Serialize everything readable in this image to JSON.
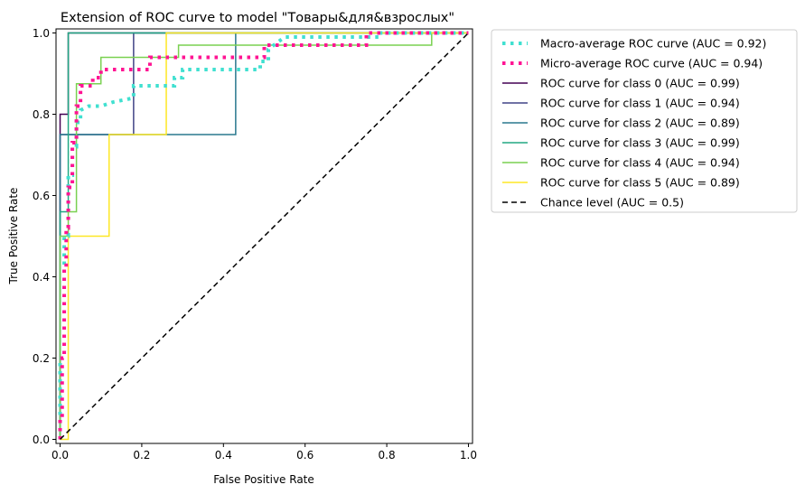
{
  "chart_data": {
    "type": "line",
    "title": "Extension of ROC curve to model \"Товары&для&взрослых\"",
    "xlabel": "False Positive Rate",
    "ylabel": "True Positive Rate",
    "xlim": [
      -0.01,
      1.01
    ],
    "ylim": [
      -0.01,
      1.01
    ],
    "xticks": [
      0.0,
      0.2,
      0.4,
      0.6,
      0.8,
      1.0
    ],
    "xtick_labels": [
      "0.0",
      "0.2",
      "0.4",
      "0.6",
      "0.8",
      "1.0"
    ],
    "yticks": [
      0.0,
      0.2,
      0.4,
      0.6,
      0.8,
      1.0
    ],
    "ytick_labels": [
      "0.0",
      "0.2",
      "0.4",
      "0.6",
      "0.8",
      "1.0"
    ],
    "grid": false,
    "legend_position": "outside upper right",
    "series": [
      {
        "name": "Macro-average ROC curve (AUC = 0.92)",
        "color": "#40e0d0",
        "style": "dotted",
        "x": [
          0.0,
          0.0,
          0.01,
          0.01,
          0.02,
          0.02,
          0.03,
          0.03,
          0.04,
          0.04,
          0.05,
          0.05,
          0.07,
          0.1,
          0.13,
          0.18,
          0.18,
          0.22,
          0.28,
          0.28,
          0.3,
          0.3,
          0.4,
          0.46,
          0.49,
          0.49,
          0.51,
          0.51,
          0.55,
          0.6,
          0.7,
          0.78,
          0.78,
          1.0
        ],
        "y": [
          0.0,
          0.2,
          0.2,
          0.5,
          0.5,
          0.65,
          0.65,
          0.72,
          0.72,
          0.78,
          0.78,
          0.81,
          0.82,
          0.82,
          0.83,
          0.84,
          0.87,
          0.87,
          0.87,
          0.89,
          0.89,
          0.91,
          0.91,
          0.91,
          0.91,
          0.93,
          0.93,
          0.96,
          0.99,
          0.99,
          0.99,
          0.99,
          1.0,
          1.0
        ]
      },
      {
        "name": "Micro-average ROC curve (AUC = 0.94)",
        "color": "#ff1493",
        "style": "dotted",
        "x": [
          0.0,
          0.0,
          0.005,
          0.005,
          0.01,
          0.01,
          0.015,
          0.015,
          0.02,
          0.02,
          0.03,
          0.03,
          0.04,
          0.04,
          0.05,
          0.05,
          0.08,
          0.08,
          0.1,
          0.1,
          0.22,
          0.22,
          0.5,
          0.5,
          0.75,
          0.75,
          1.0
        ],
        "y": [
          0.0,
          0.05,
          0.05,
          0.2,
          0.2,
          0.42,
          0.42,
          0.52,
          0.52,
          0.62,
          0.62,
          0.73,
          0.73,
          0.82,
          0.82,
          0.87,
          0.87,
          0.89,
          0.89,
          0.91,
          0.91,
          0.94,
          0.94,
          0.97,
          0.97,
          1.0,
          1.0
        ]
      },
      {
        "name": "ROC curve for class 0 (AUC = 0.99)",
        "color": "#440154",
        "style": "solid",
        "x": [
          0.0,
          0.0,
          0.0,
          0.02,
          0.02,
          1.0
        ],
        "y": [
          0.0,
          0.0,
          0.8,
          0.8,
          1.0,
          1.0
        ]
      },
      {
        "name": "ROC curve for class 1 (AUC = 0.94)",
        "color": "#414487",
        "style": "solid",
        "x": [
          0.0,
          0.0,
          0.02,
          0.02,
          0.18,
          0.18,
          0.19,
          0.19,
          1.0
        ],
        "y": [
          0.0,
          0.75,
          0.75,
          0.75,
          0.75,
          1.0,
          1.0,
          1.0,
          1.0
        ]
      },
      {
        "name": "ROC curve for class 2 (AUC = 0.89)",
        "color": "#2a788e",
        "style": "solid",
        "x": [
          0.0,
          0.0,
          0.43,
          0.43,
          1.0
        ],
        "y": [
          0.0,
          0.75,
          0.75,
          1.0,
          1.0
        ]
      },
      {
        "name": "ROC curve for class 3 (AUC = 0.99)",
        "color": "#22a884",
        "style": "solid",
        "x": [
          0.0,
          0.0,
          0.02,
          0.02,
          1.0
        ],
        "y": [
          0.0,
          0.56,
          0.56,
          1.0,
          1.0
        ]
      },
      {
        "name": "ROC curve for class 4 (AUC = 0.94)",
        "color": "#7ad151",
        "style": "solid",
        "x": [
          0.0,
          0.0,
          0.02,
          0.02,
          0.04,
          0.04,
          0.05,
          0.05,
          0.1,
          0.1,
          0.29,
          0.29,
          0.91,
          0.91,
          1.0
        ],
        "y": [
          0.0,
          0.5,
          0.5,
          0.56,
          0.56,
          0.875,
          0.875,
          0.875,
          0.875,
          0.94,
          0.94,
          0.97,
          0.97,
          1.0,
          1.0
        ]
      },
      {
        "name": "ROC curve for class 5 (AUC = 0.89)",
        "color": "#fde725",
        "style": "solid",
        "x": [
          0.0,
          0.02,
          0.02,
          0.12,
          0.12,
          0.26,
          0.26,
          1.0
        ],
        "y": [
          0.0,
          0.0,
          0.5,
          0.5,
          0.75,
          0.75,
          1.0,
          1.0
        ]
      },
      {
        "name": "Chance level (AUC = 0.5)",
        "color": "#000000",
        "style": "dashed",
        "x": [
          0.0,
          1.0
        ],
        "y": [
          0.0,
          1.0
        ]
      }
    ]
  }
}
